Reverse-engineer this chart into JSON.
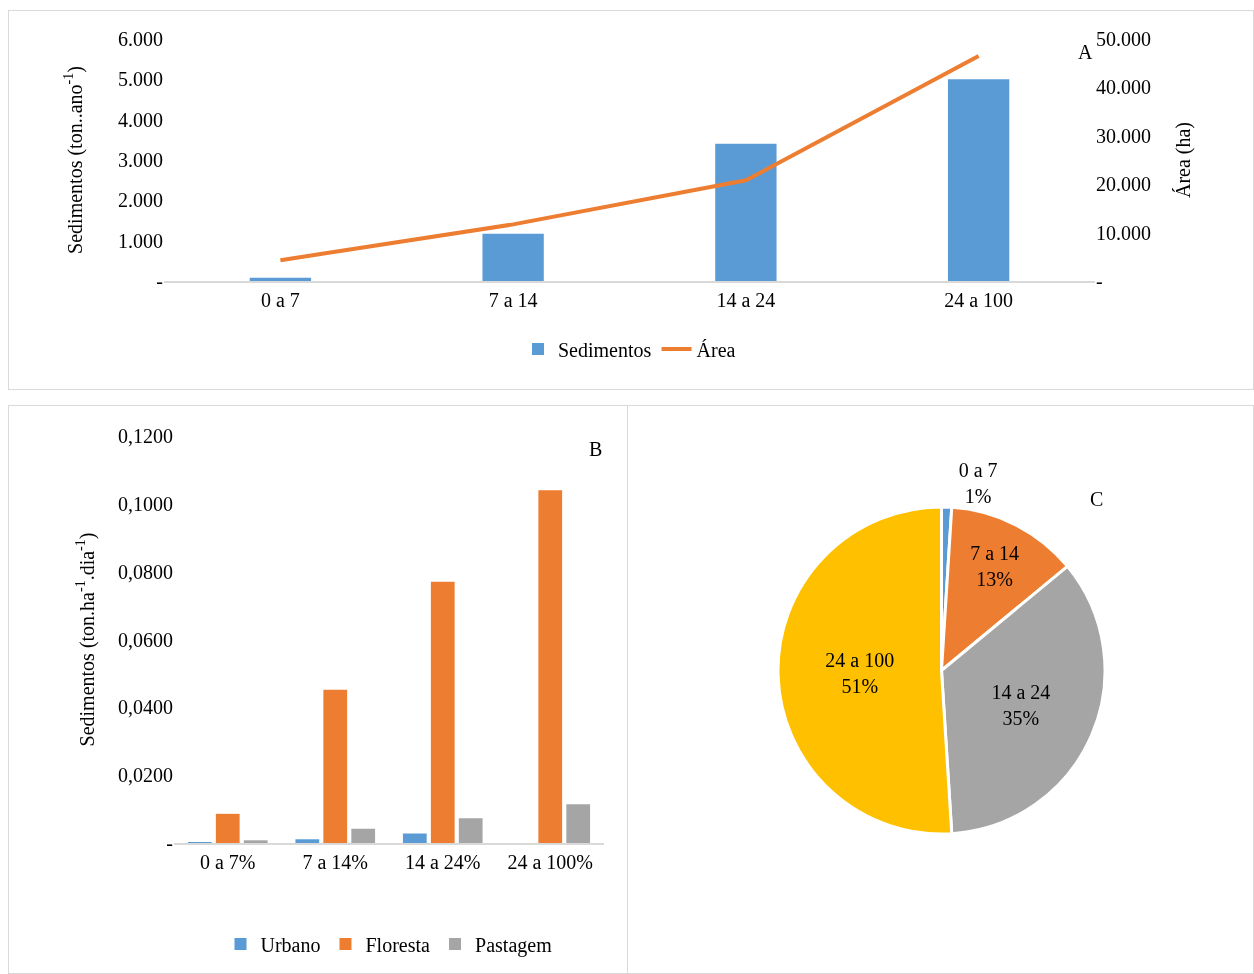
{
  "chart_data": [
    {
      "type": "bar",
      "ylabel": "Sedimentos (ton..ano$^{-1}$)",
      "y2label": "Área (ha)",
      "annotations": [
        "A"
      ],
      "categories": [
        "0 a 7",
        "7 a 14",
        "14 a 24",
        "24 a 100"
      ],
      "series": [
        {
          "name": "Sedimentos",
          "color": "#5b9bd5",
          "values": [
            80,
            1170,
            3400,
            5000
          ]
        },
        {
          "name": "Área",
          "type": "line",
          "axis": "y2",
          "color": "#ed7d31",
          "values": [
            4300,
            11700,
            20800,
            46500
          ]
        }
      ],
      "ylim": [
        0,
        6000
      ],
      "yticks": [
        {
          "value": 0,
          "label": "-"
        },
        {
          "value": 1000,
          "label": "1.000"
        },
        {
          "value": 2000,
          "label": "2.000"
        },
        {
          "value": 3000,
          "label": "3.000"
        },
        {
          "value": 4000,
          "label": "4.000"
        },
        {
          "value": 5000,
          "label": "5.000"
        },
        {
          "value": 6000,
          "label": "6.000"
        }
      ],
      "y2lim": [
        0,
        50000
      ],
      "y2ticks": [
        {
          "value": 0,
          "label": "-"
        },
        {
          "value": 10000,
          "label": "10.000"
        },
        {
          "value": 20000,
          "label": "20.000"
        },
        {
          "value": 30000,
          "label": "30.000"
        },
        {
          "value": 40000,
          "label": "40.000"
        },
        {
          "value": 50000,
          "label": "50.000"
        }
      ],
      "grid": false,
      "legend": "bottom",
      "marker": "none",
      "line_style": "solid"
    },
    {
      "type": "bar",
      "ylabel": "Sedimentos (ton.ha$^{-1}$.dia$^{-1}$)",
      "annotations": [
        "B"
      ],
      "categories": [
        "0 a 7%",
        "7 a 14%",
        "14 a 24%",
        "24 a 100%"
      ],
      "series": [
        {
          "name": "Urbano",
          "color": "#5b9bd5",
          "values": [
            0.0003,
            0.0011,
            0.0028,
            0
          ]
        },
        {
          "name": "Floresta",
          "color": "#ed7d31",
          "values": [
            0.0086,
            0.0452,
            0.077,
            0.104
          ]
        },
        {
          "name": "Pastagem",
          "color": "#a5a5a5",
          "values": [
            0.0008,
            0.0042,
            0.0073,
            0.0114
          ]
        }
      ],
      "ylim": [
        0,
        0.12
      ],
      "yticks": [
        {
          "value": 0,
          "label": "-"
        },
        {
          "value": 0.02,
          "label": "0,0200"
        },
        {
          "value": 0.04,
          "label": "0,0400"
        },
        {
          "value": 0.06,
          "label": "0,0600"
        },
        {
          "value": 0.08,
          "label": "0,0800"
        },
        {
          "value": 0.1,
          "label": "0,1000"
        },
        {
          "value": 0.12,
          "label": "0,1200"
        }
      ],
      "grid": false,
      "legend": "bottom"
    },
    {
      "type": "pie",
      "annotations": [
        "C"
      ],
      "categories": [
        "0 a 7",
        "7 a 14",
        "14 a 24",
        "24 a 100"
      ],
      "values": [
        1,
        13,
        35,
        51
      ],
      "value_labels": [
        "1%",
        "13%",
        "35%",
        "51%"
      ],
      "colors": [
        "#5b9bd5",
        "#ed7d31",
        "#a5a5a5",
        "#ffc000"
      ],
      "legend": false
    }
  ]
}
